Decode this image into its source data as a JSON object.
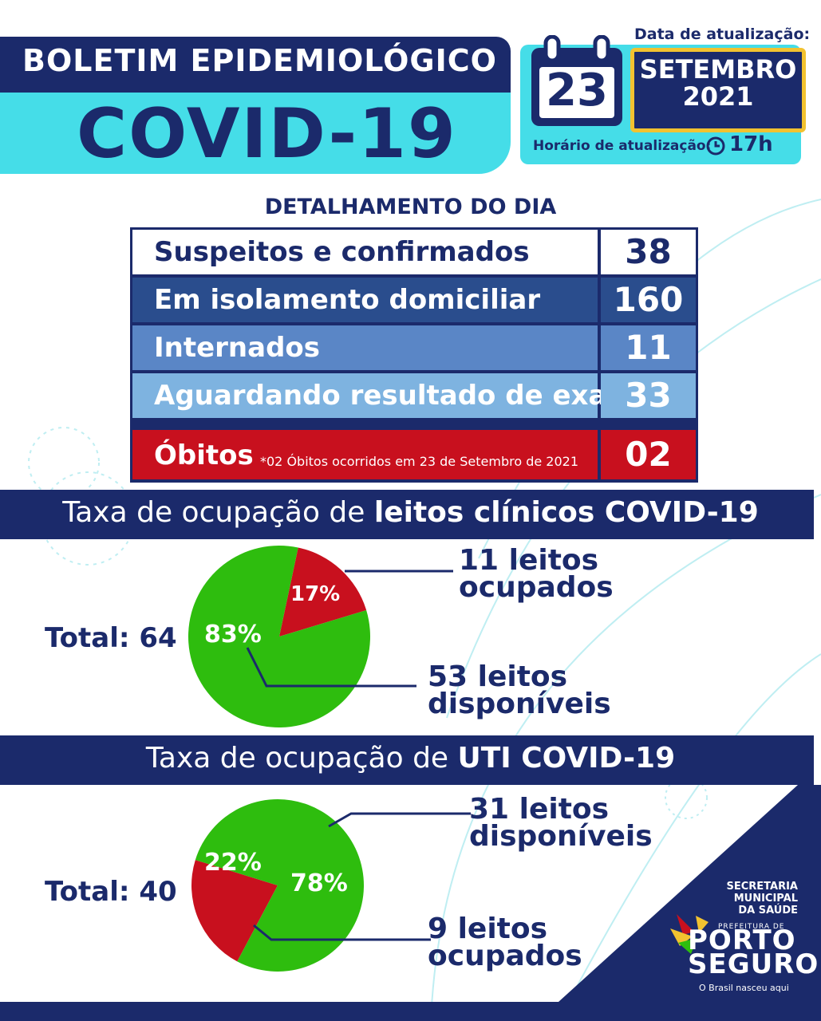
{
  "header": {
    "title": "BOLETIM EPIDEMIOLÓGICO",
    "subtitle": "COVID-19",
    "date_label": "Data de atualização:",
    "day": "23",
    "month": "SETEMBRO",
    "year": "2021",
    "time_label": "Horário de atualização:",
    "time_value": "17h"
  },
  "detail": {
    "heading": "DETALHAMENTO DO DIA",
    "rows": [
      {
        "label": "Suspeitos e confirmados",
        "value": "38"
      },
      {
        "label": "Em isolamento domiciliar",
        "value": "160"
      },
      {
        "label": "Internados",
        "value": "11"
      },
      {
        "label": "Aguardando resultado de exame",
        "value": "33"
      },
      {
        "label": "Óbitos",
        "value": "02",
        "note": "*02 Óbitos ocorridos em 23 de Setembro de 2021"
      }
    ]
  },
  "clinical": {
    "heading_prefix": "Taxa de ocupação de ",
    "heading_bold": "leitos clínicos COVID-19",
    "total": "Total: 64",
    "occupied_pct": "17%",
    "available_pct": "83%",
    "occupied_line1": "11 leitos",
    "occupied_line2": "ocupados",
    "available_line1": "53 leitos",
    "available_line2": "disponíveis"
  },
  "icu": {
    "heading_prefix": "Taxa de ocupação de ",
    "heading_bold": "UTI COVID-19",
    "total": "Total: 40",
    "occupied_pct": "22%",
    "available_pct": "78%",
    "available_line1": "31 leitos",
    "available_line2": "disponíveis",
    "occupied_line1": "9 leitos",
    "occupied_line2": "ocupados"
  },
  "chart_data": [
    {
      "type": "pie",
      "categories": [
        "ocupados",
        "disponíveis"
      ],
      "values": [
        17,
        83
      ],
      "colors": [
        "#c8101e",
        "#2ebd0e"
      ]
    },
    {
      "type": "pie",
      "categories": [
        "ocupados",
        "disponíveis"
      ],
      "values": [
        22,
        78
      ],
      "colors": [
        "#c8101e",
        "#2ebd0e"
      ]
    }
  ],
  "logo": {
    "line1": "SECRETARIA",
    "line2": "MUNICIPAL",
    "line3": "DA SAÚDE",
    "prefeitura": "PREFEITURA DE",
    "porto": "PORTO",
    "seguro": "SEGURO",
    "tagline": "O Brasil nasceu aqui"
  },
  "colors": {
    "navy": "#1b2a6b",
    "cyan": "#45dde8",
    "red": "#c8101e",
    "green": "#2ebd0e",
    "gold": "#f2c230"
  }
}
